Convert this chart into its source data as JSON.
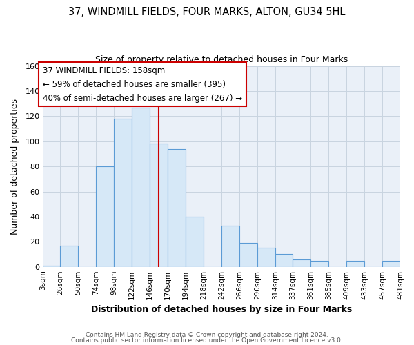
{
  "title": "37, WINDMILL FIELDS, FOUR MARKS, ALTON, GU34 5HL",
  "subtitle": "Size of property relative to detached houses in Four Marks",
  "xlabel": "Distribution of detached houses by size in Four Marks",
  "ylabel": "Number of detached properties",
  "bar_edges": [
    3,
    26,
    50,
    74,
    98,
    122,
    146,
    170,
    194,
    218,
    242,
    266,
    290,
    314,
    337,
    361,
    385,
    409,
    433,
    457,
    481
  ],
  "bar_heights": [
    1,
    17,
    0,
    80,
    118,
    127,
    98,
    94,
    40,
    0,
    33,
    19,
    15,
    10,
    6,
    5,
    0,
    5,
    0,
    5
  ],
  "bar_color": "#d6e8f7",
  "bar_edge_color": "#5b9bd5",
  "vline_x": 158,
  "vline_color": "#cc0000",
  "ylim": [
    0,
    160
  ],
  "yticks": [
    0,
    20,
    40,
    60,
    80,
    100,
    120,
    140,
    160
  ],
  "annotation_line1": "37 WINDMILL FIELDS: 158sqm",
  "annotation_line2": "← 59% of detached houses are smaller (395)",
  "annotation_line3": "40% of semi-detached houses are larger (267) →",
  "footer1": "Contains HM Land Registry data © Crown copyright and database right 2024.",
  "footer2": "Contains public sector information licensed under the Open Government Licence v3.0.",
  "grid_color": "#c8d4e0",
  "bg_color": "#eaf0f8",
  "tick_labels": [
    "3sqm",
    "26sqm",
    "50sqm",
    "74sqm",
    "98sqm",
    "122sqm",
    "146sqm",
    "170sqm",
    "194sqm",
    "218sqm",
    "242sqm",
    "266sqm",
    "290sqm",
    "314sqm",
    "337sqm",
    "361sqm",
    "385sqm",
    "409sqm",
    "433sqm",
    "457sqm",
    "481sqm"
  ]
}
